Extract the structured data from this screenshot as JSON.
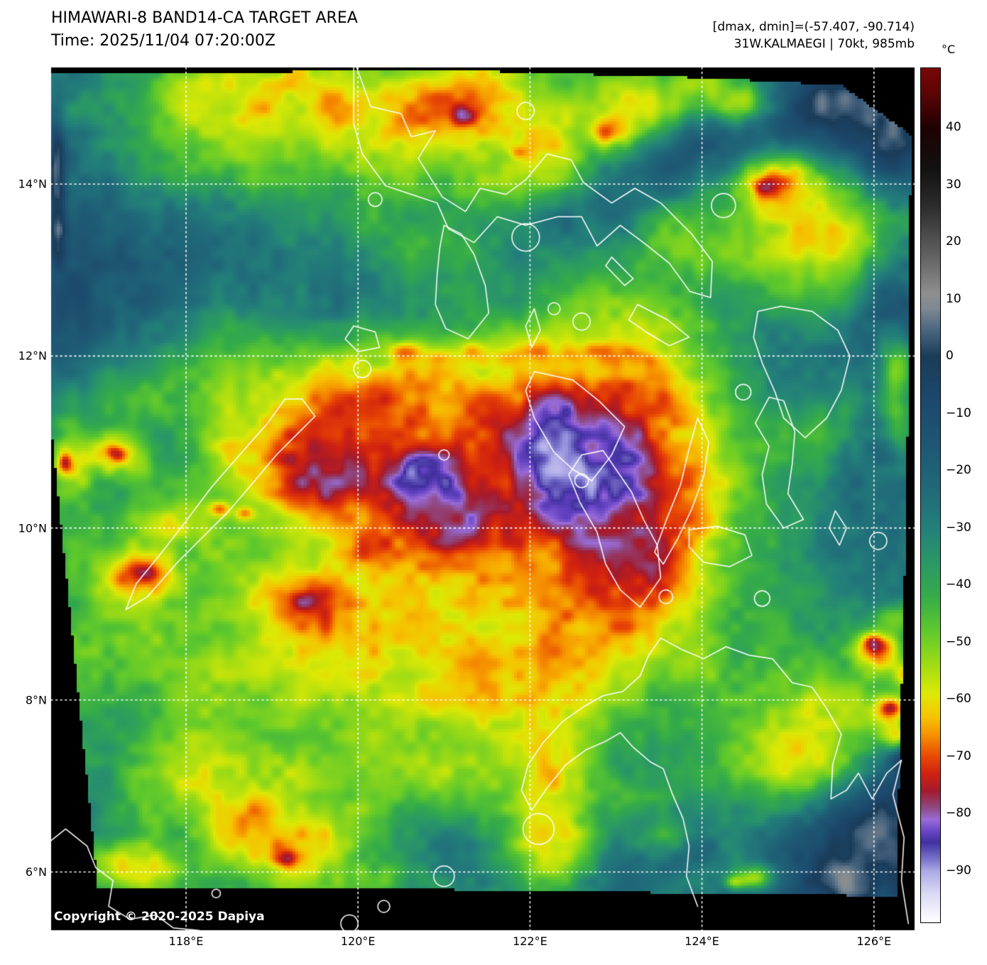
{
  "header": {
    "title": "HIMAWARI-8 BAND14-CA TARGET AREA",
    "time": "Time: 2025/11/04 07:20:00Z",
    "dmax_dmin": "[dmax, dmin]=(-57.407, -90.714)",
    "storm": "31W.KALMAEGI | 70kt, 985mb"
  },
  "colorbar": {
    "unit": "°C",
    "vmax": 50.5,
    "vmin": -99,
    "ticks": [
      {
        "label": "40",
        "value": 40
      },
      {
        "label": "30",
        "value": 30
      },
      {
        "label": "20",
        "value": 20
      },
      {
        "label": "10",
        "value": 10
      },
      {
        "label": "0",
        "value": 0
      },
      {
        "label": "−10",
        "value": -10
      },
      {
        "label": "−20",
        "value": -20
      },
      {
        "label": "−30",
        "value": -30
      },
      {
        "label": "−40",
        "value": -40
      },
      {
        "label": "−50",
        "value": -50
      },
      {
        "label": "−60",
        "value": -60
      },
      {
        "label": "−70",
        "value": -70
      },
      {
        "label": "−80",
        "value": -80
      },
      {
        "label": "−90",
        "value": -90
      }
    ],
    "stops": [
      [
        50.5,
        "#7a0606"
      ],
      [
        46,
        "#5c0405"
      ],
      [
        40,
        "#1f0103"
      ],
      [
        33,
        "#111111"
      ],
      [
        26,
        "#2e2e2e"
      ],
      [
        18,
        "#5f5f5f"
      ],
      [
        11,
        "#8f8f8f"
      ],
      [
        8.5,
        "#7e8992"
      ],
      [
        4,
        "#42607c"
      ],
      [
        0,
        "#1a3c58"
      ],
      [
        -7,
        "#1c476b"
      ],
      [
        -15,
        "#1e5673"
      ],
      [
        -23,
        "#206979"
      ],
      [
        -30,
        "#23807a"
      ],
      [
        -36,
        "#2a9866"
      ],
      [
        -42,
        "#35ac49"
      ],
      [
        -48,
        "#5fc92c"
      ],
      [
        -54,
        "#a0dc14"
      ],
      [
        -59,
        "#dde906"
      ],
      [
        -63,
        "#f6c400"
      ],
      [
        -66,
        "#f79500"
      ],
      [
        -70,
        "#e94804"
      ],
      [
        -73,
        "#d02110"
      ],
      [
        -76,
        "#a31a2e"
      ],
      [
        -79,
        "#8e4a85"
      ],
      [
        -81,
        "#9a6cd8"
      ],
      [
        -83,
        "#6a46c6"
      ],
      [
        -85,
        "#41309f"
      ],
      [
        -88,
        "#7a74cc"
      ],
      [
        -90,
        "#aca8e6"
      ],
      [
        -94,
        "#dcdaf5"
      ],
      [
        -99,
        "#ffffff"
      ]
    ]
  },
  "axes": {
    "lat_ticks": [
      {
        "label": "14°N",
        "deg": 14
      },
      {
        "label": "12°N",
        "deg": 12
      },
      {
        "label": "10°N",
        "deg": 10
      },
      {
        "label": "8°N",
        "deg": 8
      },
      {
        "label": "6°N",
        "deg": 6
      }
    ],
    "lon_ticks": [
      {
        "label": "118°E",
        "deg": 118
      },
      {
        "label": "120°E",
        "deg": 120
      },
      {
        "label": "122°E",
        "deg": 122
      },
      {
        "label": "124°E",
        "deg": 124
      },
      {
        "label": "126°E",
        "deg": 126
      }
    ]
  },
  "map": {
    "copyright": "Copyright © 2020-2025 Dapiya",
    "background": "#000000",
    "coastline_color": "#ffffff",
    "gridline_color": "#ffffff"
  }
}
